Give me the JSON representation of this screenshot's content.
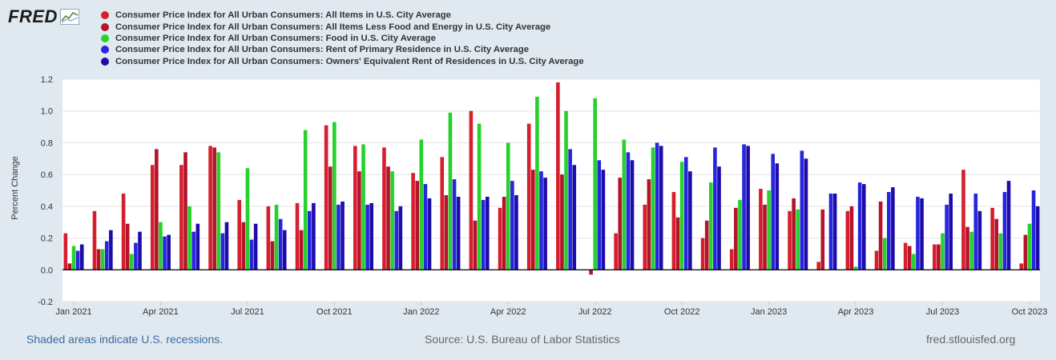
{
  "header": {
    "logo_text": "FRED",
    "legend": [
      {
        "label": "Consumer Price Index for All Urban Consumers: All Items in U.S. City Average",
        "color": "#d61e2e"
      },
      {
        "label": "Consumer Price Index for All Urban Consumers: All Items Less Food and Energy in U.S. City Average",
        "color": "#b4132a"
      },
      {
        "label": "Consumer Price Index for All Urban Consumers: Food in U.S. City Average",
        "color": "#26d12c"
      },
      {
        "label": "Consumer Price Index for All Urban Consumers: Rent of Primary Residence in U.S. City Average",
        "color": "#2626e0"
      },
      {
        "label": "Consumer Price Index for All Urban Consumers: Owners' Equivalent Rent of Residences in U.S. City Average",
        "color": "#1d0ca8"
      }
    ]
  },
  "chart_data": {
    "type": "bar",
    "title": "",
    "xlabel": "",
    "ylabel": "Percent Change",
    "ylim": [
      -0.2,
      1.2
    ],
    "yticks": [
      "-0.2",
      "0.0",
      "0.2",
      "0.4",
      "0.6",
      "0.8",
      "1.0",
      "1.2"
    ],
    "xtick_labels": [
      "Jan 2021",
      "Apr 2021",
      "Jul 2021",
      "Oct 2021",
      "Jan 2022",
      "Apr 2022",
      "Jul 2022",
      "Oct 2022",
      "Jan 2023",
      "Apr 2023",
      "Jul 2023",
      "Oct 2023"
    ],
    "categories": [
      "Jan 2021",
      "Feb 2021",
      "Mar 2021",
      "Apr 2021",
      "May 2021",
      "Jun 2021",
      "Jul 2021",
      "Aug 2021",
      "Sep 2021",
      "Oct 2021",
      "Nov 2021",
      "Dec 2021",
      "Jan 2022",
      "Feb 2022",
      "Mar 2022",
      "Apr 2022",
      "May 2022",
      "Jun 2022",
      "Jul 2022",
      "Aug 2022",
      "Sep 2022",
      "Oct 2022",
      "Nov 2022",
      "Dec 2022",
      "Jan 2023",
      "Feb 2023",
      "Mar 2023",
      "Apr 2023",
      "May 2023",
      "Jun 2023",
      "Jul 2023",
      "Aug 2023",
      "Sep 2023",
      "Oct 2023"
    ],
    "series": [
      {
        "name": "Consumer Price Index for All Urban Consumers: All Items in U.S. City Average",
        "color": "#d61e2e",
        "values": [
          0.23,
          0.37,
          0.48,
          0.66,
          0.66,
          0.78,
          0.44,
          0.4,
          0.42,
          0.91,
          0.78,
          0.77,
          0.61,
          0.71,
          1.0,
          0.39,
          0.92,
          1.18,
          0.0,
          0.23,
          0.41,
          0.49,
          0.2,
          0.13,
          0.51,
          0.37,
          0.05,
          0.37,
          0.12,
          0.17,
          0.16,
          0.63,
          0.39,
          0.04
        ]
      },
      {
        "name": "Consumer Price Index for All Urban Consumers: All Items Less Food and Energy in U.S. City Average",
        "color": "#b4132a",
        "values": [
          0.04,
          0.13,
          0.29,
          0.76,
          0.74,
          0.77,
          0.3,
          0.18,
          0.25,
          0.65,
          0.62,
          0.65,
          0.56,
          0.47,
          0.31,
          0.46,
          0.63,
          0.6,
          -0.03,
          0.58,
          0.57,
          0.33,
          0.31,
          0.39,
          0.41,
          0.45,
          0.38,
          0.4,
          0.43,
          0.15,
          0.16,
          0.27,
          0.32,
          0.22
        ]
      },
      {
        "name": "Consumer Price Index for All Urban Consumers: Food in U.S. City Average",
        "color": "#26d12c",
        "values": [
          0.15,
          0.13,
          0.1,
          0.3,
          0.4,
          0.74,
          0.64,
          0.41,
          0.88,
          0.93,
          0.79,
          0.62,
          0.82,
          0.99,
          0.92,
          0.8,
          1.09,
          1.0,
          1.08,
          0.82,
          0.77,
          0.68,
          0.55,
          0.44,
          0.5,
          0.38,
          0.0,
          0.02,
          0.2,
          0.1,
          0.23,
          0.24,
          0.23,
          0.29
        ]
      },
      {
        "name": "Consumer Price Index for All Urban Consumers: Rent of Primary Residence in U.S. City Average",
        "color": "#2626e0",
        "values": [
          0.12,
          0.18,
          0.17,
          0.21,
          0.24,
          0.23,
          0.19,
          0.32,
          0.37,
          0.41,
          0.41,
          0.37,
          0.54,
          0.57,
          0.44,
          0.56,
          0.62,
          0.76,
          0.69,
          0.74,
          0.8,
          0.71,
          0.77,
          0.79,
          0.73,
          0.75,
          0.48,
          0.55,
          0.49,
          0.46,
          0.41,
          0.48,
          0.49,
          0.5
        ]
      },
      {
        "name": "Consumer Price Index for All Urban Consumers: Owners' Equivalent Rent of Residences in U.S. City Average",
        "color": "#1d0ca8",
        "values": [
          0.16,
          0.25,
          0.24,
          0.22,
          0.29,
          0.3,
          0.29,
          0.25,
          0.42,
          0.43,
          0.42,
          0.4,
          0.45,
          0.46,
          0.46,
          0.47,
          0.58,
          0.66,
          0.63,
          0.69,
          0.78,
          0.62,
          0.65,
          0.78,
          0.67,
          0.7,
          0.48,
          0.54,
          0.52,
          0.45,
          0.48,
          0.37,
          0.56,
          0.4
        ]
      }
    ]
  },
  "footer": {
    "recession_note": "Shaded areas indicate U.S. recessions.",
    "source": "Source: U.S. Bureau of Labor Statistics",
    "site": "fred.stlouisfed.org"
  }
}
